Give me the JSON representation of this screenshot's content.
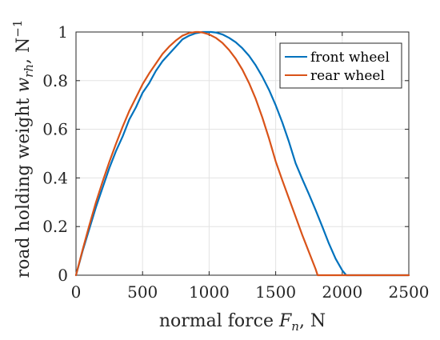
{
  "chart_data": {
    "type": "line",
    "title": "",
    "xlabel": {
      "prefix": "normal force ",
      "var": "F",
      "sub": "n",
      "suffix": ", N"
    },
    "ylabel": {
      "prefix": "road holding weight ",
      "var": "w",
      "sub": "rh",
      "suffix": ", N",
      "sup": "−1"
    },
    "xlim": [
      0,
      2500
    ],
    "ylim": [
      0,
      1
    ],
    "xticks": [
      0,
      500,
      1000,
      1500,
      2000,
      2500
    ],
    "xtick_labels": [
      "0",
      "500",
      "1000",
      "1500",
      "2000",
      "2500"
    ],
    "yticks": [
      0,
      0.2,
      0.4,
      0.6,
      0.8,
      1
    ],
    "ytick_labels": [
      "0",
      "0.2",
      "0.4",
      "0.6",
      "0.8",
      "1"
    ],
    "grid": true,
    "legend_position": "top-right",
    "series": [
      {
        "name": "front wheel",
        "color": "#0072BD",
        "x": [
          0,
          50,
          100,
          150,
          200,
          250,
          300,
          350,
          400,
          450,
          500,
          550,
          600,
          650,
          700,
          750,
          800,
          850,
          900,
          950,
          1000,
          1015,
          1050,
          1100,
          1150,
          1200,
          1250,
          1300,
          1350,
          1400,
          1450,
          1500,
          1550,
          1600,
          1650,
          1700,
          1750,
          1800,
          1850,
          1900,
          1950,
          2000,
          2030,
          2100,
          2200,
          2300,
          2400,
          2500
        ],
        "y": [
          0,
          0.1,
          0.19,
          0.28,
          0.36,
          0.44,
          0.51,
          0.57,
          0.64,
          0.69,
          0.75,
          0.79,
          0.84,
          0.88,
          0.91,
          0.94,
          0.97,
          0.985,
          0.995,
          1.0,
          1.0,
          1.0,
          0.998,
          0.99,
          0.976,
          0.958,
          0.933,
          0.902,
          0.863,
          0.816,
          0.762,
          0.699,
          0.628,
          0.548,
          0.46,
          0.395,
          0.333,
          0.268,
          0.2,
          0.13,
          0.068,
          0.02,
          0,
          0,
          0,
          0,
          0,
          0
        ]
      },
      {
        "name": "rear wheel",
        "color": "#D95319",
        "x": [
          0,
          50,
          100,
          150,
          200,
          250,
          300,
          350,
          400,
          450,
          500,
          550,
          600,
          650,
          700,
          750,
          800,
          850,
          900,
          920,
          950,
          1000,
          1050,
          1100,
          1150,
          1200,
          1250,
          1300,
          1350,
          1400,
          1450,
          1500,
          1550,
          1600,
          1650,
          1700,
          1750,
          1800,
          1815,
          1900,
          2000,
          2100,
          2200,
          2300,
          2400,
          2500
        ],
        "y": [
          0,
          0.105,
          0.205,
          0.3,
          0.385,
          0.465,
          0.54,
          0.61,
          0.675,
          0.73,
          0.785,
          0.83,
          0.87,
          0.91,
          0.94,
          0.965,
          0.985,
          0.996,
          1.0,
          1.0,
          0.998,
          0.99,
          0.976,
          0.955,
          0.926,
          0.89,
          0.845,
          0.79,
          0.725,
          0.648,
          0.562,
          0.468,
          0.39,
          0.315,
          0.24,
          0.165,
          0.095,
          0.025,
          0,
          0,
          0,
          0,
          0,
          0,
          0,
          0
        ]
      }
    ]
  }
}
